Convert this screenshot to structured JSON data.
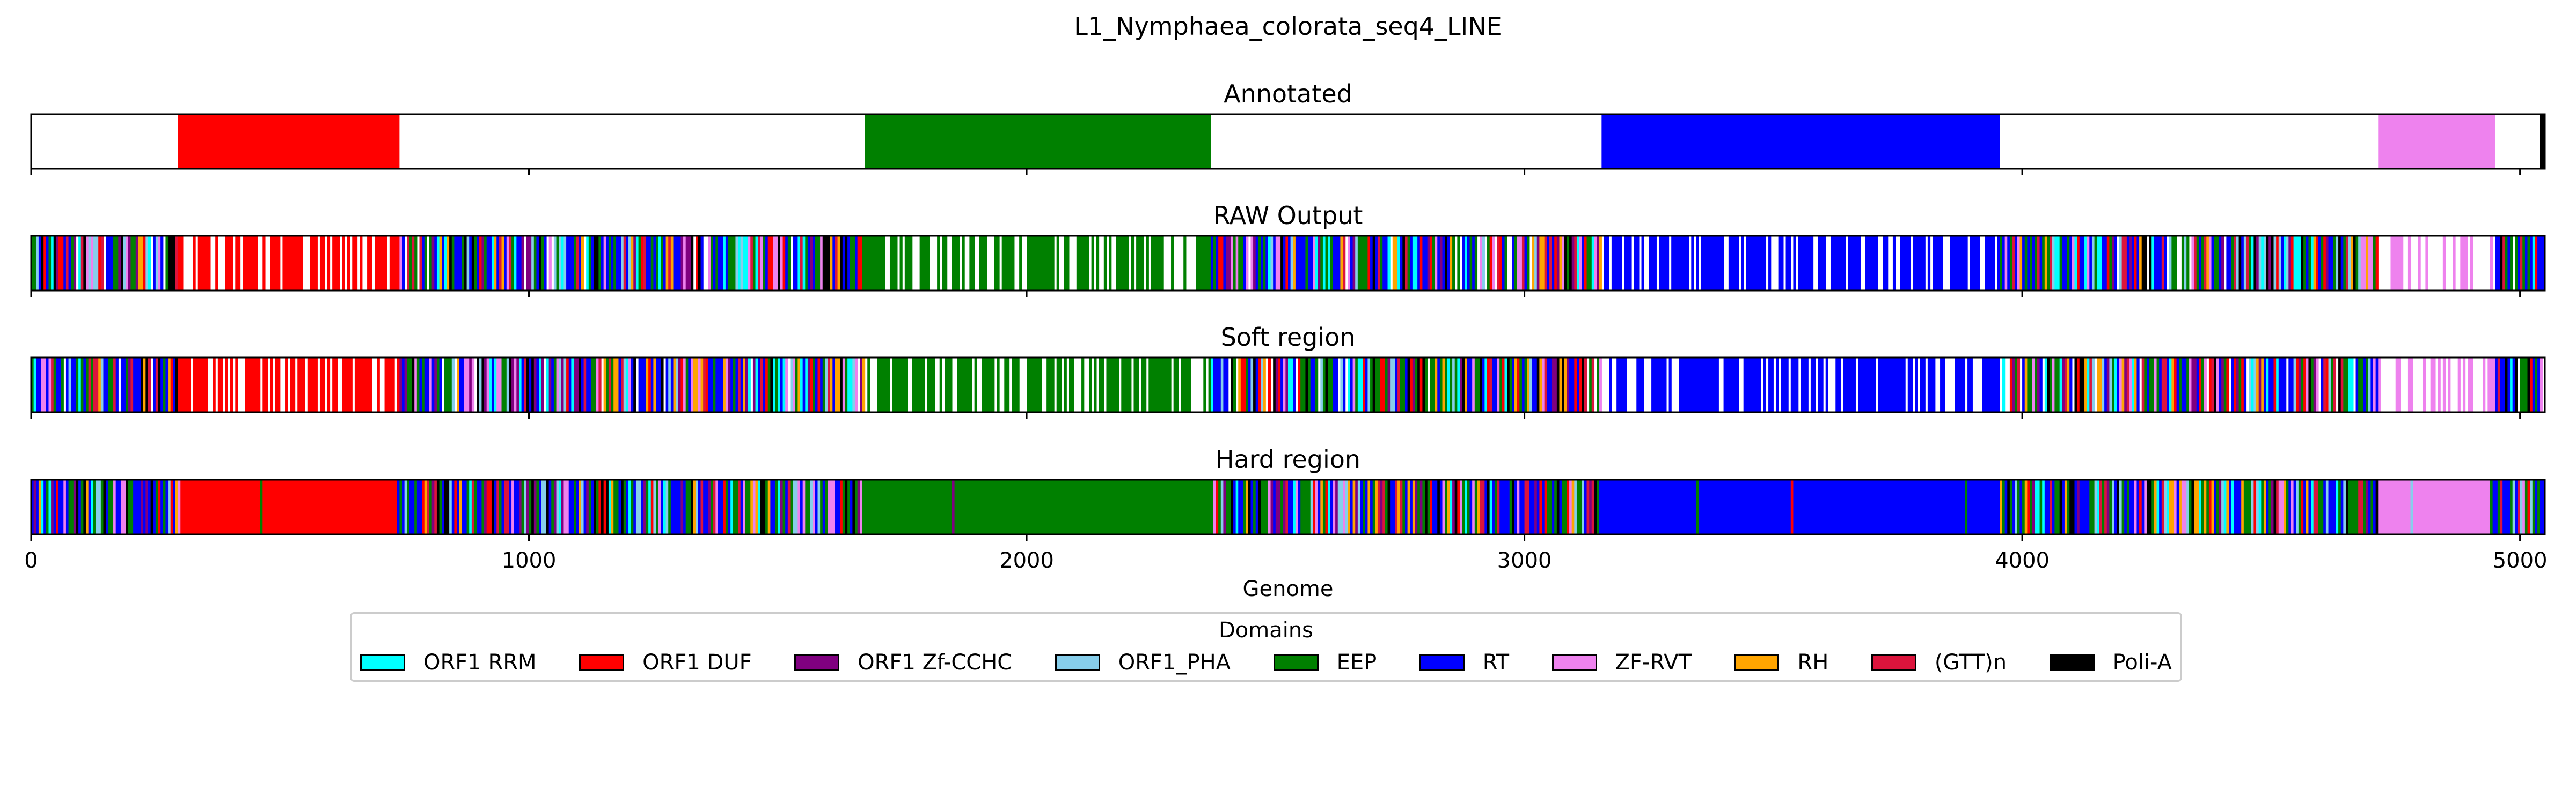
{
  "chart_data": {
    "type": "bar",
    "title": "L1_Nymphaea_colorata_seq4_LINE",
    "xlabel": "Genome",
    "xlim": [
      0,
      5050
    ],
    "xticks": [
      0,
      1000,
      2000,
      3000,
      4000,
      5000
    ],
    "legend": {
      "title": "Domains",
      "placement": "bottom-center",
      "entries": [
        {
          "label": "ORF1 RRM",
          "color": "#00ffff"
        },
        {
          "label": "ORF1 DUF",
          "color": "#ff0000"
        },
        {
          "label": "ORF1 Zf-CCHC",
          "color": "#800080"
        },
        {
          "label": "ORF1_PHA",
          "color": "#87ceeb"
        },
        {
          "label": "EEP",
          "color": "#008000"
        },
        {
          "label": "RT",
          "color": "#0000ff"
        },
        {
          "label": "ZF-RVT",
          "color": "#ee82ee"
        },
        {
          "label": "RH",
          "color": "#ffa500"
        },
        {
          "label": "(GTT)n",
          "color": "#dc143c"
        },
        {
          "label": "Poli-A",
          "color": "#000000"
        }
      ]
    },
    "panels": [
      {
        "title": "Annotated",
        "regions": [
          {
            "domain": "ORF1 DUF",
            "start": 295,
            "end": 740
          },
          {
            "domain": "EEP",
            "start": 1675,
            "end": 2370
          },
          {
            "domain": "RT",
            "start": 3155,
            "end": 3955
          },
          {
            "domain": "ZF-RVT",
            "start": 4715,
            "end": 4950
          },
          {
            "domain": "Poli-A",
            "start": 5040,
            "end": 5050
          }
        ]
      },
      {
        "title": "RAW Output",
        "blocks": [
          {
            "domain": "ORF1 DUF",
            "start": 295,
            "end": 740,
            "density": 0.65
          },
          {
            "domain": "EEP",
            "start": 1675,
            "end": 2370,
            "density": 0.68
          },
          {
            "domain": "RT",
            "start": 3155,
            "end": 3955,
            "density": 0.72
          },
          {
            "domain": "ZF-RVT",
            "start": 4715,
            "end": 4950,
            "density": 0.3
          }
        ]
      },
      {
        "title": "Soft region",
        "blocks": [
          {
            "domain": "ORF1 DUF",
            "start": 295,
            "end": 740,
            "density": 0.7
          },
          {
            "domain": "EEP",
            "start": 1675,
            "end": 2370,
            "density": 0.72
          },
          {
            "domain": "RT",
            "start": 3155,
            "end": 3955,
            "density": 0.72
          },
          {
            "domain": "ZF-RVT",
            "start": 4715,
            "end": 4950,
            "density": 0.35
          }
        ]
      },
      {
        "title": "Hard region",
        "blocks": [
          {
            "domain": "ORF1 DUF",
            "start": 300,
            "end": 735,
            "density": 1
          },
          {
            "domain": "EEP",
            "start": 1670,
            "end": 2370,
            "density": 1
          },
          {
            "domain": "RT",
            "start": 3160,
            "end": 3955,
            "density": 1
          },
          {
            "domain": "ZF-RVT",
            "start": 4715,
            "end": 4940,
            "density": 1
          }
        ]
      }
    ],
    "background_noise": "dense multi-colored stripes of all domains between solid regions (RAW Output, Soft region, Hard region)"
  }
}
